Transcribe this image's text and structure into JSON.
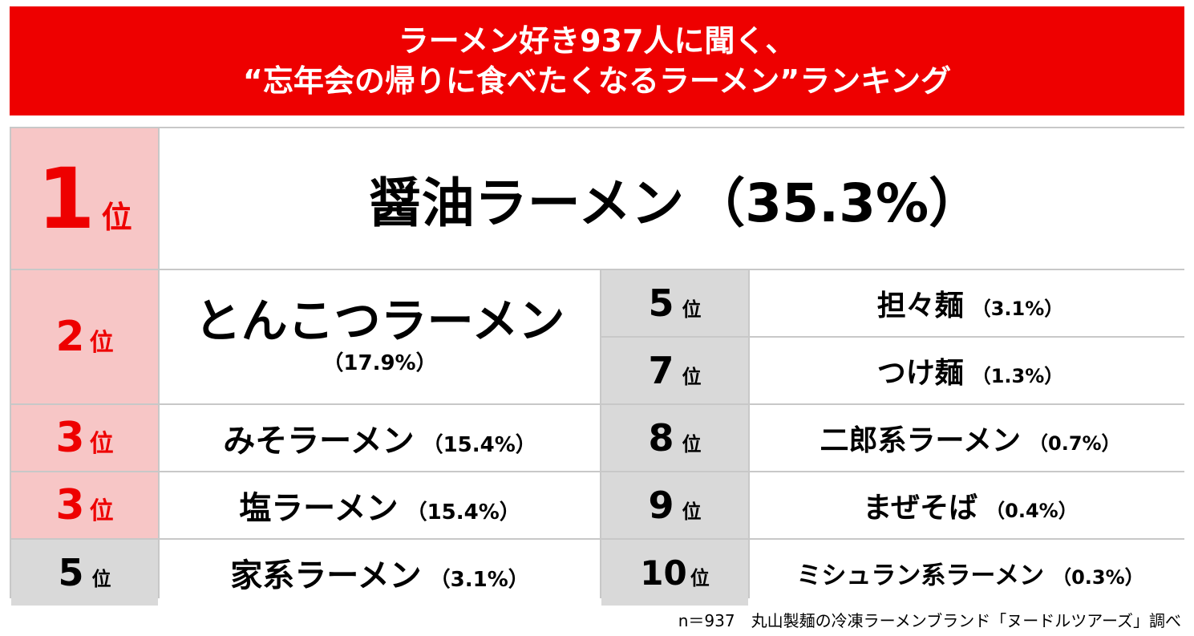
{
  "title": {
    "line1": "ラーメン好き937人に聞く、",
    "line2": "“忘年会の帰りに食べたくなるラーメン”ランキング"
  },
  "rank_suffix": "位",
  "colors": {
    "banner": "#ee0000",
    "rank_top": "#f7c6c6",
    "rank_other": "#d9d9d9",
    "rank_text_top": "#ee0000"
  },
  "chart_data": {
    "type": "table",
    "unit": "%",
    "rows": [
      {
        "rank": "1",
        "name": "醤油ラーメン",
        "value": 35.3,
        "label": "（35.3%）"
      },
      {
        "rank": "2",
        "name": "とんこつラーメン",
        "value": 17.9,
        "label": "（17.9%）"
      },
      {
        "rank": "3",
        "name": "みそラーメン",
        "value": 15.4,
        "label": "（15.4%）"
      },
      {
        "rank": "3",
        "name": "塩ラーメン",
        "value": 15.4,
        "label": "（15.4%）"
      },
      {
        "rank": "5",
        "name": "家系ラーメン",
        "value": 3.1,
        "label": "（3.1%）"
      },
      {
        "rank": "5",
        "name": "担々麺",
        "value": 3.1,
        "label": "（3.1%）"
      },
      {
        "rank": "7",
        "name": "つけ麺",
        "value": 1.3,
        "label": "（1.3%）"
      },
      {
        "rank": "8",
        "name": "二郎系ラーメン",
        "value": 0.7,
        "label": "（0.7%）"
      },
      {
        "rank": "9",
        "name": "まぜそば",
        "value": 0.4,
        "label": "（0.4%）"
      },
      {
        "rank": "10",
        "name": "ミシュラン系ラーメン",
        "value": 0.3,
        "label": "（0.3%）"
      }
    ]
  },
  "footer": "n＝937　丸山製麺の冷凍ラーメンブランド「ヌードルツアーズ」調べ"
}
